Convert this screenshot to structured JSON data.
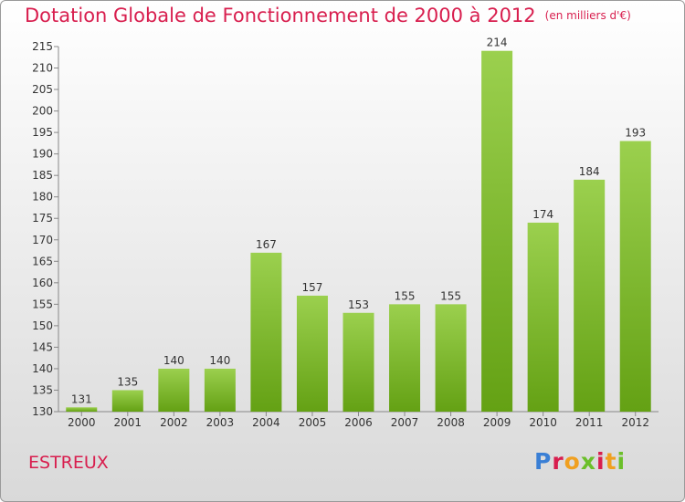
{
  "header": {
    "title": "Dotation Globale de Fonctionnement de 2000 à 2012",
    "subtitle": "(en milliers d'€)"
  },
  "footer": {
    "commune": "ESTREUX",
    "logo_text": "Proxiti"
  },
  "colors": {
    "title": "#d81e4e",
    "bar_top": "#9bd04e",
    "bar_bottom": "#64a114",
    "logo": [
      "#3a7fd5",
      "#d81e4e",
      "#f0a020",
      "#6bbf2a"
    ]
  },
  "chart_data": {
    "type": "bar",
    "title": "Dotation Globale de Fonctionnement de 2000 à 2012",
    "subtitle": "(en milliers d'€)",
    "xlabel": "",
    "ylabel": "",
    "categories": [
      "2000",
      "2001",
      "2002",
      "2003",
      "2004",
      "2005",
      "2006",
      "2007",
      "2008",
      "2009",
      "2010",
      "2011",
      "2012"
    ],
    "values": [
      131,
      135,
      140,
      140,
      167,
      157,
      153,
      155,
      155,
      214,
      174,
      184,
      193
    ],
    "ylim": [
      130,
      215
    ],
    "yticks": [
      130,
      135,
      140,
      145,
      150,
      155,
      160,
      165,
      170,
      175,
      180,
      185,
      190,
      195,
      200,
      205,
      210,
      215
    ],
    "grid": false,
    "legend": "none"
  }
}
